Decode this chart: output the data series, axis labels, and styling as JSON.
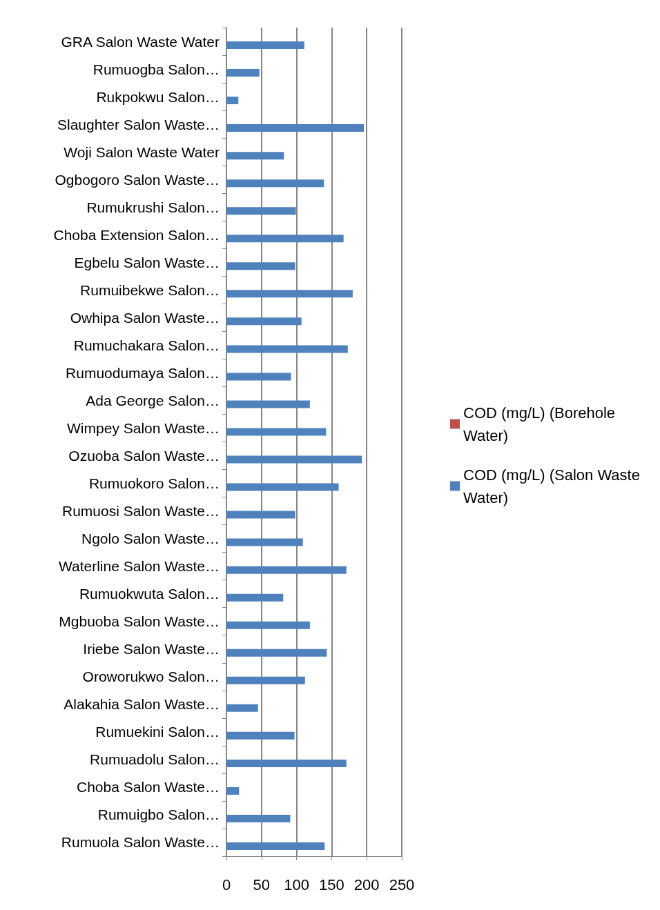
{
  "chart_data": {
    "type": "bar",
    "orientation": "horizontal",
    "categories": [
      "GRA Salon Waste Water",
      "Rumuogba Salon…",
      "Rukpokwu Salon…",
      "Slaughter Salon Waste…",
      "Woji Salon Waste Water",
      "Ogbogoro Salon Waste…",
      "Rumukrushi Salon…",
      "Choba Extension Salon…",
      "Egbelu Salon Waste…",
      "Rumuibekwe Salon…",
      "Owhipa Salon Waste…",
      "Rumuchakara Salon…",
      "Rumuodumaya Salon…",
      "Ada George Salon…",
      "Wimpey Salon Waste…",
      "Ozuoba Salon Waste…",
      "Rumuokoro Salon…",
      "Rumuosi Salon Waste…",
      "Ngolo Salon Waste…",
      "Waterline Salon Waste…",
      "Rumuokwuta Salon…",
      "Mgbuoba Salon Waste…",
      "Iriebe Salon Waste…",
      "Oroworukwo Salon…",
      "Alakahia Salon Waste…",
      "Rumuekini Salon…",
      "Rumuadolu Salon…",
      "Choba Salon Waste…",
      "Rumuigbo Salon…",
      "Rumuola Salon Waste…"
    ],
    "series": [
      {
        "name": "COD (mg/L) (Borehole Water)",
        "color": "#c0504d",
        "values": [
          null,
          null,
          null,
          null,
          null,
          null,
          null,
          null,
          null,
          null,
          null,
          null,
          null,
          null,
          null,
          null,
          null,
          null,
          null,
          null,
          null,
          null,
          null,
          null,
          null,
          null,
          null,
          null,
          null,
          null
        ]
      },
      {
        "name": "COD (mg/L) (Salon Waste Water)",
        "color": "#4f81bd",
        "values": [
          111,
          47,
          17,
          196,
          82,
          139,
          99,
          167,
          98,
          180,
          107,
          173,
          92,
          119,
          142,
          193,
          160,
          98,
          109,
          171,
          81,
          119,
          143,
          112,
          45,
          97,
          171,
          18,
          91,
          140
        ]
      }
    ],
    "xlim": [
      0,
      250
    ],
    "xticks": [
      0,
      50,
      100,
      150,
      200,
      250
    ],
    "grid": "x",
    "legend": "right"
  }
}
